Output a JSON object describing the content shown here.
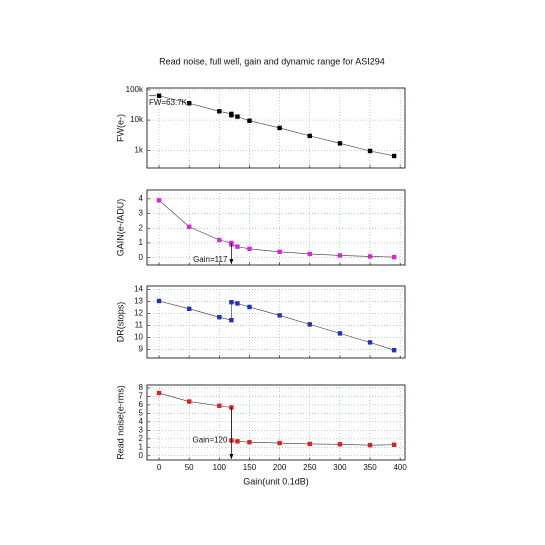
{
  "chart_data": [
    {
      "type": "line",
      "title": "Read noise, full well, gain and dynamic range for ASI294",
      "ylabel": "FW(e-)",
      "log_y": true,
      "color": "#000000",
      "x": [
        0,
        50,
        100,
        120,
        120,
        130,
        150,
        200,
        250,
        300,
        350,
        390
      ],
      "values": [
        63700,
        36000,
        19500,
        16000,
        14500,
        13000,
        9500,
        5500,
        3000,
        1700,
        950,
        650
      ],
      "xlim": [
        -20,
        408
      ],
      "ylim": [
        260,
        115000
      ],
      "yticks": [
        {
          "value": 1000,
          "label": "1k"
        },
        {
          "value": 10000,
          "label": "10k"
        },
        {
          "value": 100000,
          "label": "100k"
        }
      ],
      "annotation": "FW=63.7K",
      "grid": true
    },
    {
      "type": "line",
      "ylabel": "GAIN(e-/ADU)",
      "color": "#e020e0",
      "x": [
        0,
        50,
        100,
        120,
        120,
        130,
        150,
        200,
        250,
        300,
        350,
        390
      ],
      "values": [
        3.9,
        2.1,
        1.2,
        1.0,
        0.9,
        0.75,
        0.6,
        0.4,
        0.25,
        0.15,
        0.08,
        0.04
      ],
      "xlim": [
        -20,
        408
      ],
      "ylim": [
        -0.5,
        4.6
      ],
      "yticks": [
        0,
        1,
        2,
        3,
        4
      ],
      "annotation": "Gain=117",
      "grid": true
    },
    {
      "type": "line",
      "ylabel": "DR(stops)",
      "color": "#2030c0",
      "x": [
        0,
        50,
        100,
        120,
        120,
        130,
        150,
        200,
        250,
        300,
        350,
        390
      ],
      "values": [
        13.05,
        12.4,
        11.7,
        11.45,
        12.95,
        12.85,
        12.55,
        11.85,
        11.1,
        10.35,
        9.6,
        8.95
      ],
      "xlim": [
        -20,
        408
      ],
      "ylim": [
        8.3,
        14.3
      ],
      "yticks": [
        9,
        10,
        11,
        12,
        13,
        14
      ],
      "grid": true
    },
    {
      "type": "line",
      "ylabel": "Read noise(e-rms)",
      "xlabel": "Gain(unit 0.1dB)",
      "color": "#e02020",
      "x": [
        0,
        50,
        100,
        120,
        120,
        130,
        150,
        200,
        250,
        300,
        350,
        390
      ],
      "values": [
        7.4,
        6.4,
        5.9,
        5.7,
        1.8,
        1.7,
        1.6,
        1.5,
        1.4,
        1.35,
        1.25,
        1.3
      ],
      "xlim": [
        -20,
        408
      ],
      "ylim": [
        -0.5,
        8.35
      ],
      "yticks": [
        0,
        1,
        2,
        3,
        4,
        5,
        6,
        7,
        8
      ],
      "xticks": [
        0,
        50,
        100,
        150,
        200,
        250,
        300,
        350,
        400
      ],
      "annotation": "Gain=120",
      "grid": true
    }
  ]
}
